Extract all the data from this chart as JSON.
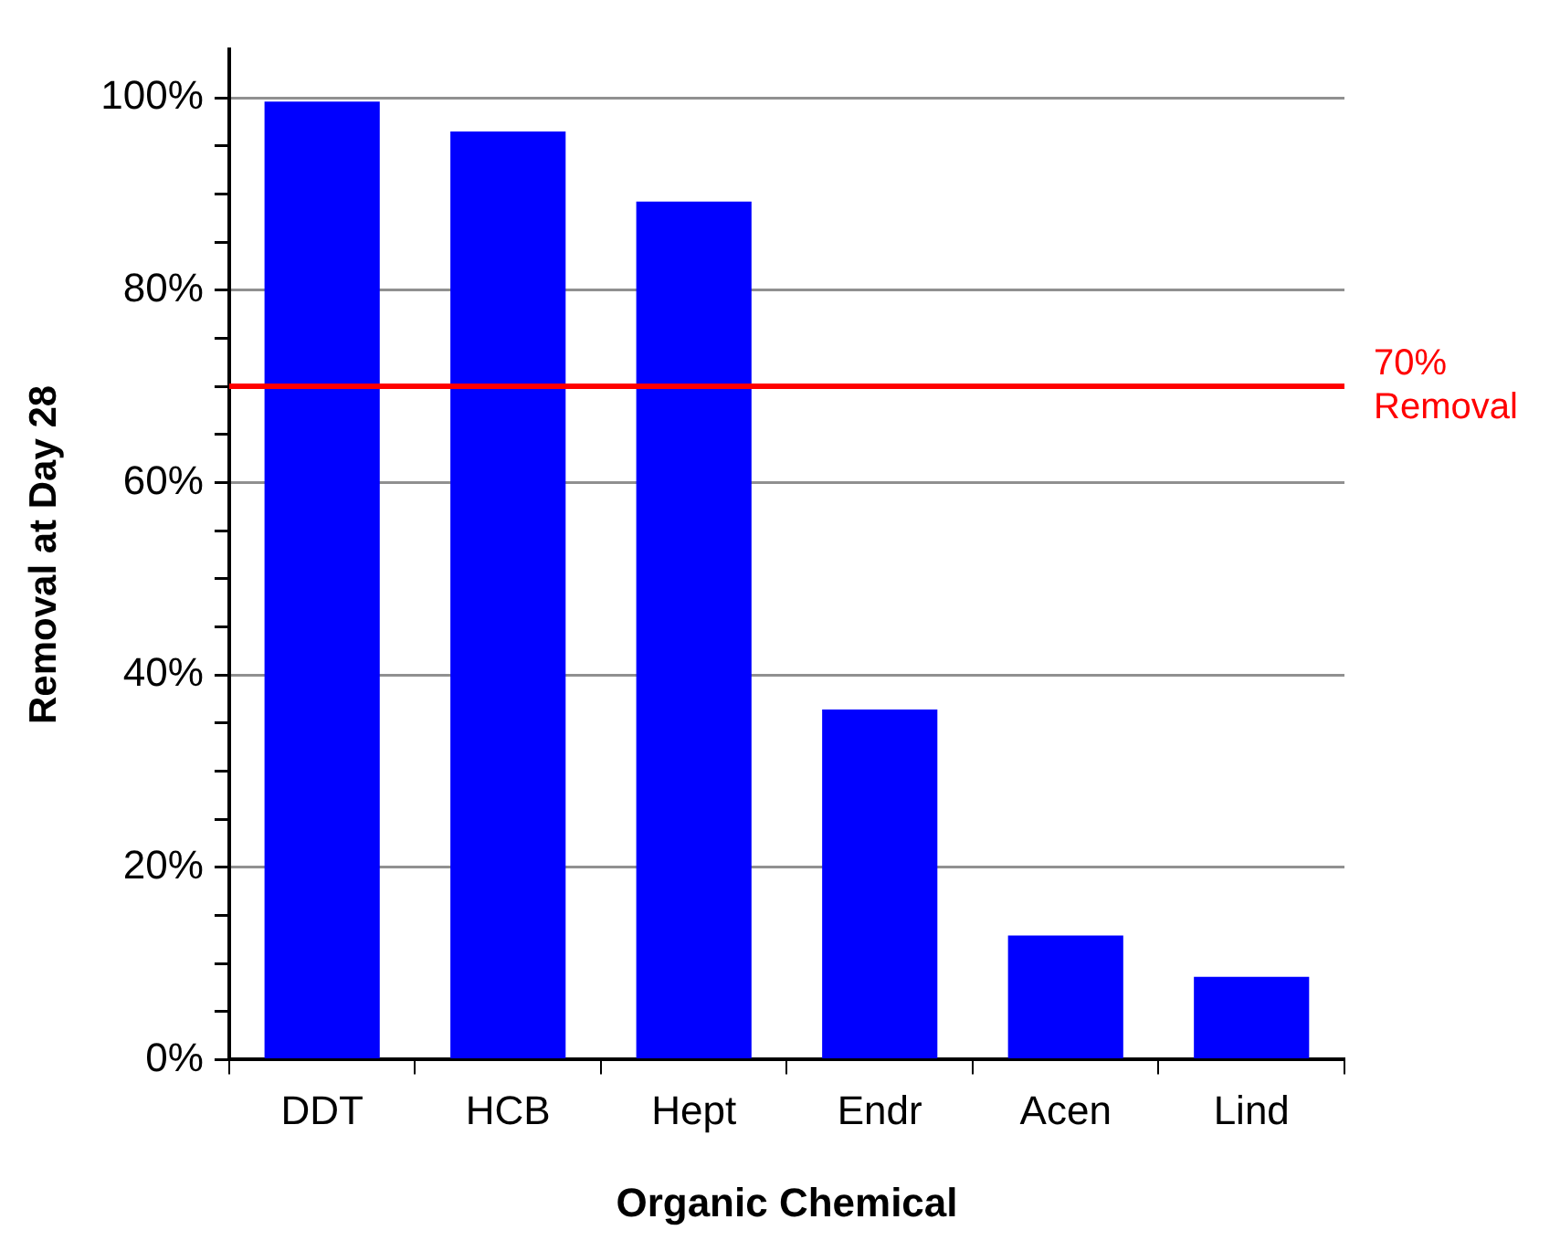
{
  "chart_data": {
    "type": "bar",
    "xlabel": "Organic Chemical",
    "ylabel": "Removal at Day 28",
    "categories": [
      "DDT",
      "HCB",
      "Hept",
      "Endr",
      "Acen",
      "Lind"
    ],
    "values": [
      99.6,
      96.5,
      89.2,
      36.4,
      12.9,
      8.6
    ],
    "color": "#0000ff",
    "ylim": [
      0,
      105
    ],
    "yticks": [
      {
        "value": 0,
        "label": "0%"
      },
      {
        "value": 5,
        "label": null
      },
      {
        "value": 10,
        "label": null
      },
      {
        "value": 15,
        "label": null
      },
      {
        "value": 20,
        "label": "20%"
      },
      {
        "value": 25,
        "label": null
      },
      {
        "value": 30,
        "label": null
      },
      {
        "value": 35,
        "label": null
      },
      {
        "value": 40,
        "label": "40%"
      },
      {
        "value": 45,
        "label": null
      },
      {
        "value": 50,
        "label": null
      },
      {
        "value": 55,
        "label": null
      },
      {
        "value": 60,
        "label": "60%"
      },
      {
        "value": 65,
        "label": null
      },
      {
        "value": 70,
        "label": null
      },
      {
        "value": 75,
        "label": null
      },
      {
        "value": 80,
        "label": "80%"
      },
      {
        "value": 85,
        "label": null
      },
      {
        "value": 90,
        "label": null
      },
      {
        "value": 95,
        "label": null
      },
      {
        "value": 100,
        "label": "100%"
      }
    ],
    "grid": "y",
    "legend": false,
    "ref_lines": [
      {
        "axis": "y",
        "value": 70,
        "label": "70%\nRemoval",
        "color": "#ff0000",
        "line_style": "solid"
      }
    ]
  }
}
